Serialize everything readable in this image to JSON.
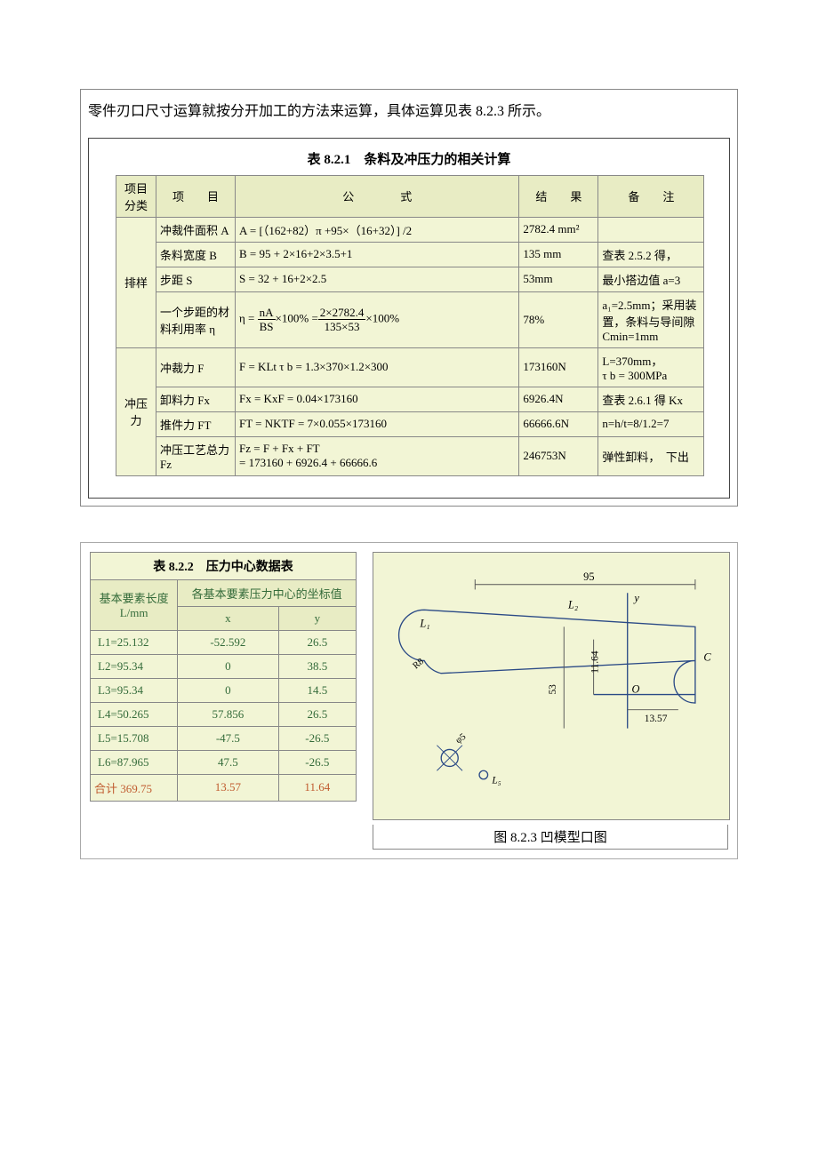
{
  "intro": "零件刃口尺寸运算就按分开加工的方法来运算，具体运算见表 8.2.3 所示。",
  "table821": {
    "title": "表 8.2.1　条料及冲压力的相关计算",
    "headers": {
      "cat": "项目分类",
      "item": "项　　目",
      "formula": "公　　　　式",
      "result": "结　　果",
      "note": "备　　注"
    },
    "group1_label": "排样",
    "group2_label": "冲压力",
    "rows_g1": [
      {
        "item": "冲裁件面积 A",
        "formula_text": "A = [（162+82）π +95×（16+32）] /2",
        "result": "2782.4 mm²",
        "note": ""
      },
      {
        "item": "条料宽度 B",
        "formula_text": "B = 95 + 2×16+2×3.5+1",
        "result": "135 mm",
        "note": "查表 2.5.2 得，"
      },
      {
        "item": "步距 S",
        "formula_text": "S = 32 + 16+2×2.5",
        "result": "53mm",
        "note": "最小搭边值 a=3"
      },
      {
        "item": "一个步距的材料利用率 η",
        "formula_frac": {
          "pre": "η =",
          "num1": "nA",
          "den1": "BS",
          "mid": "×100% =",
          "num2": "2×2782.4",
          "den2": "135×53",
          "post": "×100%"
        },
        "result": "78%",
        "note": "a₁=2.5mm；采用装置，条料与导间隙 Cmin=1mm"
      }
    ],
    "rows_g2": [
      {
        "item": "冲裁力 F",
        "formula_text": "F = KLt τ b = 1.3×370×1.2×300",
        "result": "173160N",
        "note": "L=370mm，\nτ b = 300MPa"
      },
      {
        "item": "卸料力 Fx",
        "formula_text": "Fx = KxF = 0.04×173160",
        "result": "6926.4N",
        "note": "查表 2.6.1 得 Kx"
      },
      {
        "item": "推件力 FT",
        "formula_text": "FT = NKTF = 7×0.055×173160",
        "result": "66666.6N",
        "note": "n=h/t=8/1.2=7"
      },
      {
        "item": "冲压工艺总力 Fz",
        "formula_text": "Fz = F + Fx + FT\n= 173160 + 6926.4 + 66666.6",
        "result": "246753N",
        "note": "弹性卸料，　下出"
      }
    ]
  },
  "table822": {
    "title": "表 8.2.2　压力中心数据表",
    "header_len": "基本要素长度\nL/mm",
    "header_xy": "各基本要素压力中心的坐标值",
    "hx": "x",
    "hy": "y",
    "rows": [
      {
        "l": "L1=25.132",
        "x": "-52.592",
        "y": "26.5"
      },
      {
        "l": "L2=95.34",
        "x": "0",
        "y": "38.5"
      },
      {
        "l": "L3=95.34",
        "x": "0",
        "y": "14.5"
      },
      {
        "l": "L4=50.265",
        "x": "57.856",
        "y": "26.5"
      },
      {
        "l": "L5=15.708",
        "x": "-47.5",
        "y": "-26.5"
      },
      {
        "l": "L6=87.965",
        "x": "47.5",
        "y": "-26.5"
      }
    ],
    "total": {
      "l": "合计 369.75",
      "x": "13.57",
      "y": "11.64"
    }
  },
  "figure": {
    "caption": "图 8.2.3 凹模型口图",
    "labels": {
      "dim95": "95",
      "yaxis": "y",
      "L1": "L₁",
      "L2": "L₂",
      "R8": "R8",
      "C": "C",
      "v1164": "11.64",
      "v53": "53",
      "O": "O",
      "v1357": "13.57",
      "phi5": "φ5",
      "L5": "L₅"
    },
    "colors": {
      "bg": "#f2f5d5",
      "line": "#2b4a86",
      "text": "#000000",
      "dim": "#555555"
    }
  }
}
